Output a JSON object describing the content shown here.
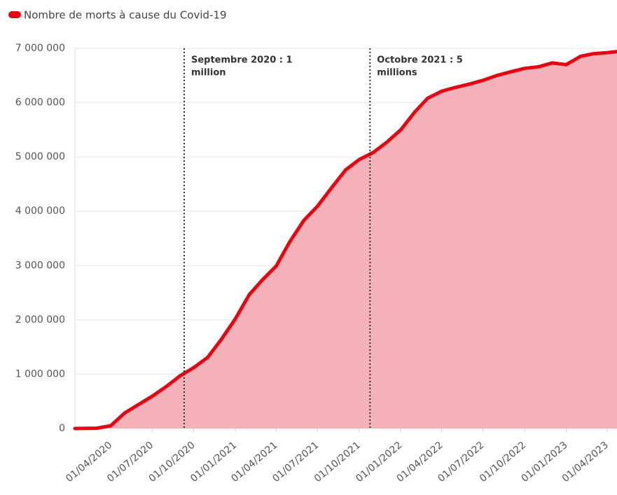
{
  "chart_data": {
    "type": "area",
    "legend": "top-left",
    "series": [
      {
        "name": "Nombre de morts à cause du Covid-19",
        "color": "#e30613",
        "fill": "#f4b1b9",
        "x": [
          "2020-01-13",
          "2020-03-01",
          "2020-04-01",
          "2020-05-01",
          "2020-06-01",
          "2020-07-01",
          "2020-08-01",
          "2020-09-01",
          "2020-10-01",
          "2020-11-01",
          "2020-12-01",
          "2021-01-01",
          "2021-02-01",
          "2021-03-01",
          "2021-04-01",
          "2021-05-01",
          "2021-06-01",
          "2021-07-01",
          "2021-08-01",
          "2021-09-01",
          "2021-10-01",
          "2021-11-01",
          "2021-12-01",
          "2022-01-01",
          "2022-02-01",
          "2022-03-01",
          "2022-04-01",
          "2022-05-01",
          "2022-06-01",
          "2022-07-01",
          "2022-08-01",
          "2022-09-01",
          "2022-10-01",
          "2022-11-01",
          "2022-12-01",
          "2023-01-01",
          "2023-02-01",
          "2023-03-01",
          "2023-04-01",
          "2023-04-23"
        ],
        "values": [
          0,
          5000,
          50000,
          280000,
          440000,
          590000,
          770000,
          970000,
          1120000,
          1310000,
          1640000,
          2020000,
          2470000,
          2730000,
          2990000,
          3440000,
          3830000,
          4090000,
          4430000,
          4760000,
          4950000,
          5080000,
          5270000,
          5500000,
          5830000,
          6080000,
          6210000,
          6280000,
          6340000,
          6410000,
          6500000,
          6570000,
          6630000,
          6660000,
          6730000,
          6700000,
          6850000,
          6900000,
          6920000,
          6940000
        ]
      }
    ],
    "xlim": [
      "2020-01-13",
      "2023-04-23"
    ],
    "xticks": [
      {
        "value": "2020-04-01",
        "label": "01/04/2020"
      },
      {
        "value": "2020-07-01",
        "label": "01/07/2020"
      },
      {
        "value": "2020-10-01",
        "label": "01/10/2020"
      },
      {
        "value": "2021-01-01",
        "label": "01/01/2021"
      },
      {
        "value": "2021-04-01",
        "label": "01/04/2021"
      },
      {
        "value": "2021-07-01",
        "label": "01/07/2021"
      },
      {
        "value": "2021-10-01",
        "label": "01/10/2021"
      },
      {
        "value": "2022-01-01",
        "label": "01/01/2022"
      },
      {
        "value": "2022-04-01",
        "label": "01/04/2022"
      },
      {
        "value": "2022-07-01",
        "label": "01/07/2022"
      },
      {
        "value": "2022-10-01",
        "label": "01/10/2022"
      },
      {
        "value": "2023-01-01",
        "label": "01/01/2023"
      },
      {
        "value": "2023-04-01",
        "label": "01/04/2023"
      }
    ],
    "ylim": [
      0,
      7000000
    ],
    "yticks": [
      0,
      {
        "value": 1000000,
        "label": "1 000 000"
      },
      {
        "value": 2000000,
        "label": "2 000 000"
      },
      {
        "value": 3000000,
        "label": "3 000 000"
      },
      {
        "value": 4000000,
        "label": "4 000 000"
      },
      {
        "value": 5000000,
        "label": "5 000 000"
      },
      {
        "value": 6000000,
        "label": "6 000 000"
      },
      {
        "value": 7000000,
        "label": "7 000 000"
      }
    ],
    "grid": true,
    "annotations": [
      {
        "x": "2020-09-10",
        "text": [
          "Septembre 2020 : 1",
          "million"
        ]
      },
      {
        "x": "2021-10-25",
        "text": [
          "Octobre 2021 : 5",
          "millions"
        ]
      }
    ]
  }
}
